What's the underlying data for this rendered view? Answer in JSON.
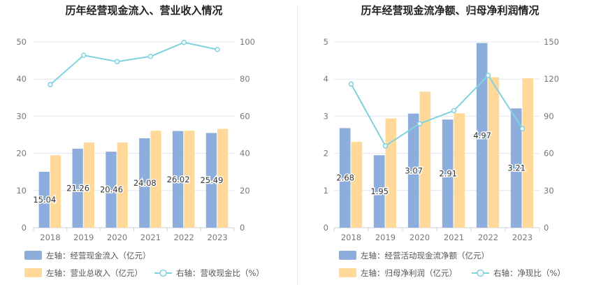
{
  "colors": {
    "bar_left": "#8daedd",
    "bar_right": "#ffd999",
    "line": "#7fd3de",
    "grid": "#e3e6ef",
    "title": "#222222"
  },
  "chart_data": [
    {
      "type": "bar",
      "title": "历年经营现金流入、营业收入情况",
      "categories": [
        "2018",
        "2019",
        "2020",
        "2021",
        "2022",
        "2023"
      ],
      "left_axis": {
        "ylim": [
          0,
          50
        ],
        "ticks": [
          0,
          10,
          20,
          30,
          40,
          50
        ]
      },
      "right_axis": {
        "ylim": [
          0,
          100
        ],
        "ticks": [
          0,
          20,
          40,
          60,
          80,
          100
        ]
      },
      "series": [
        {
          "name": "左轴：经营现金流入（亿元）",
          "kind": "bar",
          "axis": "left",
          "values": [
            15.04,
            21.26,
            20.46,
            24.08,
            26.02,
            25.49
          ],
          "labels": [
            "15.04",
            "21.26",
            "20.46",
            "24.08",
            "26.02",
            "25.49"
          ]
        },
        {
          "name": "左轴：营业总收入（亿元）",
          "kind": "bar",
          "axis": "left",
          "values": [
            19.5,
            22.9,
            22.9,
            26.1,
            26.1,
            26.6
          ]
        },
        {
          "name": "右轴：营收现金比（%）",
          "kind": "line",
          "axis": "right",
          "values": [
            77.0,
            92.8,
            89.4,
            92.2,
            99.7,
            95.9
          ]
        }
      ],
      "legend_placement": "bottom-left",
      "grid": true
    },
    {
      "type": "bar",
      "title": "历年经营现金流净额、归母净利润情况",
      "categories": [
        "2018",
        "2019",
        "2020",
        "2021",
        "2022",
        "2023"
      ],
      "left_axis": {
        "ylim": [
          0,
          5
        ],
        "ticks": [
          0,
          1,
          2,
          3,
          4,
          5
        ]
      },
      "right_axis": {
        "ylim": [
          0,
          150
        ],
        "ticks": [
          0,
          30,
          60,
          90,
          120,
          150
        ]
      },
      "series": [
        {
          "name": "左轴：经营活动现金流净额（亿元）",
          "kind": "bar",
          "axis": "left",
          "values": [
            2.68,
            1.95,
            3.07,
            2.91,
            4.97,
            3.21
          ],
          "labels": [
            "2.68",
            "1.95",
            "3.07",
            "2.91",
            "4.97",
            "3.21"
          ]
        },
        {
          "name": "左轴：归母净利润（亿元）",
          "kind": "bar",
          "axis": "left",
          "values": [
            2.31,
            2.94,
            3.66,
            3.08,
            4.05,
            4.02
          ]
        },
        {
          "name": "右轴：净现比（%）",
          "kind": "line",
          "axis": "right",
          "values": [
            116,
            66,
            84,
            94.5,
            123,
            80
          ]
        }
      ],
      "legend_placement": "bottom-left",
      "grid": true
    }
  ]
}
